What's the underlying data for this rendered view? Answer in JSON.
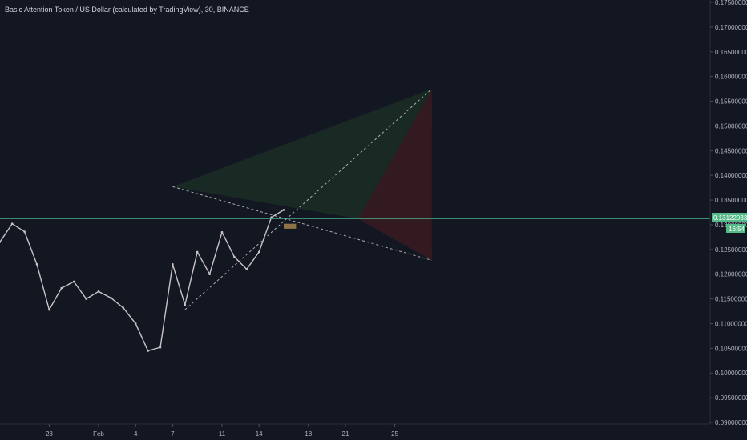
{
  "header": {
    "title": "Basic Attention Token / US Dollar (calculated by TradingView), 30, BINANCE"
  },
  "price_label": {
    "price": "0.13122033",
    "countdown": "16:54"
  },
  "colors": {
    "background": "#131722",
    "axis_text": "#b2b5be",
    "candles": "#c9c3c7",
    "current_price_line": "#4ea88a",
    "price_tag": "#53b987",
    "green_zone": "#1e3a24",
    "red_zone": "#4a1c22",
    "trendline": "#c8c8c8",
    "highlight_box": "#c49a55"
  },
  "chart_data": {
    "type": "line",
    "title": "Basic Attention Token / US Dollar (calculated by TradingView), 30, BINANCE",
    "xlabel": "",
    "ylabel": "",
    "x_tick_labels": [
      "28",
      "Feb",
      "4",
      "7",
      "11",
      "14",
      "18",
      "21",
      "25"
    ],
    "x_tick_days": [
      -4,
      0,
      3,
      6,
      10,
      13,
      17,
      20,
      24
    ],
    "y_tick_labels": [
      "0.17500000",
      "0.17000000",
      "0.16500000",
      "0.16000000",
      "0.15500000",
      "0.15000000",
      "0.14500000",
      "0.14000000",
      "0.13500000",
      "0.13000000",
      "0.12500000",
      "0.12000000",
      "0.11500000",
      "0.11000000",
      "0.10500000",
      "0.10000000",
      "0.09500000",
      "0.09000000"
    ],
    "ylim": [
      0.09,
      0.175
    ],
    "grid": false,
    "current_price": 0.13122033,
    "series": [
      {
        "x": [
          "Jan 24",
          "Jan 25",
          "Jan 26",
          "Jan 27",
          "Jan 28",
          "Jan 29",
          "Jan 30",
          "Jan 31",
          "Feb 1",
          "Feb 2",
          "Feb 3",
          "Feb 4",
          "Feb 5",
          "Feb 6",
          "Feb 7",
          "Feb 8",
          "Feb 9",
          "Feb 10",
          "Feb 11",
          "Feb 12",
          "Feb 13",
          "Feb 14",
          "Feb 15",
          "Feb 16"
        ],
        "values": [
          0.1265,
          0.1302,
          0.1286,
          0.122,
          0.1128,
          0.1172,
          0.1185,
          0.115,
          0.1165,
          0.1152,
          0.1132,
          0.11,
          0.1045,
          0.1052,
          0.122,
          0.1138,
          0.1245,
          0.12,
          0.1285,
          0.1235,
          0.121,
          0.1245,
          0.1315,
          0.133
        ]
      }
    ],
    "annotations": {
      "descending_line": {
        "from": {
          "x": "Feb 7",
          "y": 0.1377
        },
        "to": {
          "x": "Feb 28",
          "y": 0.1228
        }
      },
      "ascending_line": {
        "from": {
          "x": "Feb 8",
          "y": 0.1128
        },
        "to": {
          "x": "Feb 28",
          "y": 0.1575
        }
      },
      "green_zone": [
        {
          "x": "Feb 7",
          "y": 0.1377
        },
        {
          "x": "Feb 28",
          "y": 0.1575
        },
        {
          "x": "Feb 22",
          "y": 0.1312
        }
      ],
      "red_zone": [
        {
          "x": "Feb 22",
          "y": 0.1312
        },
        {
          "x": "Feb 28",
          "y": 0.1575
        },
        {
          "x": "Feb 28",
          "y": 0.1228
        }
      ],
      "highlight_box": {
        "x0": "Feb 16",
        "x1": "Feb 17",
        "y0": 0.1292,
        "y1": 0.1302
      }
    }
  }
}
